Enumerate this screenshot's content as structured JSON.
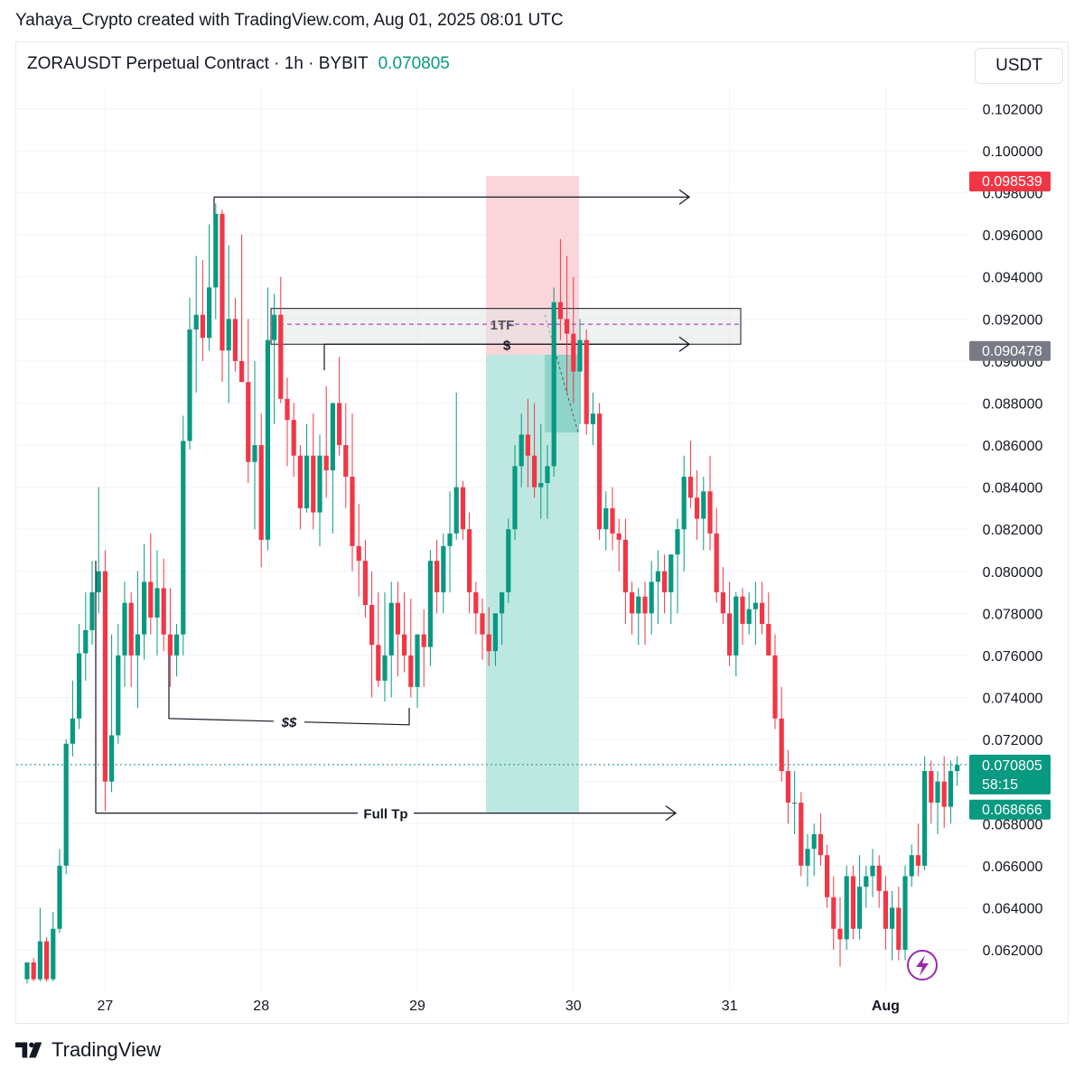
{
  "header": {
    "credit": "Yahaya_Crypto created with TradingView.com, Aug 01, 2025 08:01 UTC",
    "symbol_line": "ZORAUSDT Perpetual Contract · 1h · BYBIT",
    "last_price": "0.070805",
    "unit_button": "USDT"
  },
  "footer": {
    "brand": "TradingView",
    "logo_icon": "tradingview-logo-icon"
  },
  "colors": {
    "up": "#089981",
    "down": "#f23645",
    "grid": "#f0f3fa",
    "text": "#131722",
    "long_zone": "#b2e4dc",
    "stop_zone": "#f9cfd3",
    "box": "#e3e6e6",
    "badge_red": "#f23645",
    "badge_gray": "#787b86",
    "badge_green": "#089981",
    "lightning": "#9c27b0"
  },
  "chart_data": {
    "type": "candlestick",
    "symbol": "ZORAUSDT",
    "timeframe": "1h",
    "y_axis": {
      "ticks": [
        "0.102000",
        "0.100000",
        "0.098000",
        "0.096000",
        "0.094000",
        "0.092000",
        "0.090000",
        "0.088000",
        "0.086000",
        "0.084000",
        "0.082000",
        "0.080000",
        "0.078000",
        "0.076000",
        "0.074000",
        "0.072000",
        "0.070000",
        "0.068000",
        "0.066000",
        "0.064000",
        "0.062000"
      ],
      "range": [
        0.0605,
        0.1035
      ]
    },
    "x_axis": {
      "ticks": [
        {
          "label": "27",
          "index": 12
        },
        {
          "label": "28",
          "index": 36
        },
        {
          "label": "29",
          "index": 60
        },
        {
          "label": "30",
          "index": 84
        },
        {
          "label": "31",
          "index": 108
        },
        {
          "label": "Aug",
          "index": 132
        }
      ]
    },
    "candles": [
      [
        0.0606,
        0.0614,
        0.0604,
        0.0614
      ],
      [
        0.0614,
        0.0616,
        0.0605,
        0.0606
      ],
      [
        0.0606,
        0.064,
        0.0605,
        0.0624
      ],
      [
        0.0624,
        0.0626,
        0.0605,
        0.0606
      ],
      [
        0.0606,
        0.0638,
        0.0605,
        0.063
      ],
      [
        0.063,
        0.0668,
        0.0628,
        0.066
      ],
      [
        0.066,
        0.072,
        0.0656,
        0.0718
      ],
      [
        0.0718,
        0.0748,
        0.0712,
        0.073
      ],
      [
        0.073,
        0.0775,
        0.0725,
        0.0761
      ],
      [
        0.0761,
        0.079,
        0.0748,
        0.0772
      ],
      [
        0.0772,
        0.0805,
        0.0765,
        0.079
      ],
      [
        0.079,
        0.084,
        0.078,
        0.08
      ],
      [
        0.08,
        0.081,
        0.0686,
        0.07
      ],
      [
        0.07,
        0.077,
        0.0695,
        0.0722
      ],
      [
        0.0722,
        0.0775,
        0.0718,
        0.076
      ],
      [
        0.076,
        0.0795,
        0.0745,
        0.0785
      ],
      [
        0.0785,
        0.079,
        0.0745,
        0.076
      ],
      [
        0.076,
        0.08,
        0.0735,
        0.077
      ],
      [
        0.077,
        0.0813,
        0.0758,
        0.0795
      ],
      [
        0.0795,
        0.0818,
        0.077,
        0.0778
      ],
      [
        0.0778,
        0.081,
        0.076,
        0.0792
      ],
      [
        0.0792,
        0.0806,
        0.0762,
        0.077
      ],
      [
        0.077,
        0.0792,
        0.0745,
        0.076
      ],
      [
        0.076,
        0.0775,
        0.075,
        0.077
      ],
      [
        0.077,
        0.0874,
        0.076,
        0.0862
      ],
      [
        0.0862,
        0.093,
        0.0858,
        0.0915
      ],
      [
        0.0915,
        0.095,
        0.0885,
        0.0922
      ],
      [
        0.0922,
        0.0948,
        0.09,
        0.0911
      ],
      [
        0.0911,
        0.0965,
        0.0905,
        0.0935
      ],
      [
        0.0935,
        0.0975,
        0.092,
        0.097
      ],
      [
        0.097,
        0.0972,
        0.089,
        0.0905
      ],
      [
        0.0905,
        0.0955,
        0.088,
        0.092
      ],
      [
        0.092,
        0.093,
        0.0895,
        0.09
      ],
      [
        0.09,
        0.096,
        0.089,
        0.089
      ],
      [
        0.089,
        0.092,
        0.0842,
        0.0852
      ],
      [
        0.0852,
        0.09,
        0.082,
        0.086
      ],
      [
        0.086,
        0.0875,
        0.0802,
        0.0815
      ],
      [
        0.0815,
        0.0935,
        0.081,
        0.091
      ],
      [
        0.091,
        0.0932,
        0.087,
        0.0922
      ],
      [
        0.0922,
        0.094,
        0.088,
        0.0882
      ],
      [
        0.0882,
        0.0892,
        0.085,
        0.0872
      ],
      [
        0.0872,
        0.088,
        0.0845,
        0.0855
      ],
      [
        0.0855,
        0.086,
        0.082,
        0.083
      ],
      [
        0.083,
        0.087,
        0.0828,
        0.0855
      ],
      [
        0.0855,
        0.0875,
        0.082,
        0.0828
      ],
      [
        0.0828,
        0.0865,
        0.0812,
        0.0855
      ],
      [
        0.0855,
        0.0888,
        0.0835,
        0.0848
      ],
      [
        0.0848,
        0.088,
        0.0818,
        0.088
      ],
      [
        0.088,
        0.0902,
        0.0855,
        0.086
      ],
      [
        0.086,
        0.088,
        0.083,
        0.0845
      ],
      [
        0.0845,
        0.0875,
        0.08,
        0.0812
      ],
      [
        0.0812,
        0.0832,
        0.0788,
        0.0805
      ],
      [
        0.0805,
        0.0815,
        0.0778,
        0.0784
      ],
      [
        0.0784,
        0.08,
        0.074,
        0.0765
      ],
      [
        0.0765,
        0.079,
        0.0745,
        0.0748
      ],
      [
        0.0748,
        0.079,
        0.0738,
        0.076
      ],
      [
        0.076,
        0.0795,
        0.074,
        0.0785
      ],
      [
        0.0785,
        0.0795,
        0.075,
        0.077
      ],
      [
        0.077,
        0.079,
        0.0752,
        0.076
      ],
      [
        0.076,
        0.0787,
        0.074,
        0.0745
      ],
      [
        0.0745,
        0.077,
        0.0735,
        0.077
      ],
      [
        0.077,
        0.0782,
        0.0745,
        0.0764
      ],
      [
        0.0764,
        0.081,
        0.0755,
        0.0805
      ],
      [
        0.0805,
        0.0815,
        0.078,
        0.079
      ],
      [
        0.079,
        0.0818,
        0.078,
        0.0812
      ],
      [
        0.0812,
        0.0838,
        0.079,
        0.0818
      ],
      [
        0.0818,
        0.0885,
        0.0815,
        0.084
      ],
      [
        0.084,
        0.0843,
        0.0815,
        0.082
      ],
      [
        0.082,
        0.0828,
        0.078,
        0.079
      ],
      [
        0.079,
        0.0795,
        0.077,
        0.078
      ],
      [
        0.078,
        0.0787,
        0.0758,
        0.077
      ],
      [
        0.077,
        0.0783,
        0.0755,
        0.0762
      ],
      [
        0.0762,
        0.078,
        0.0755,
        0.078
      ],
      [
        0.078,
        0.079,
        0.0765,
        0.079
      ],
      [
        0.079,
        0.0825,
        0.0785,
        0.082
      ],
      [
        0.082,
        0.086,
        0.0815,
        0.085
      ],
      [
        0.085,
        0.0875,
        0.084,
        0.0865
      ],
      [
        0.0865,
        0.0882,
        0.084,
        0.0855
      ],
      [
        0.0855,
        0.088,
        0.0835,
        0.084
      ],
      [
        0.084,
        0.087,
        0.0825,
        0.0842
      ],
      [
        0.0842,
        0.086,
        0.0825,
        0.085
      ],
      [
        0.085,
        0.0935,
        0.0845,
        0.0928
      ],
      [
        0.0928,
        0.0958,
        0.091,
        0.092
      ],
      [
        0.092,
        0.095,
        0.0885,
        0.0913
      ],
      [
        0.0913,
        0.094,
        0.088,
        0.0895
      ],
      [
        0.0895,
        0.092,
        0.087,
        0.091
      ],
      [
        0.091,
        0.0915,
        0.0865,
        0.087
      ],
      [
        0.087,
        0.0885,
        0.086,
        0.0875
      ],
      [
        0.0875,
        0.088,
        0.0815,
        0.082
      ],
      [
        0.082,
        0.0838,
        0.081,
        0.083
      ],
      [
        0.083,
        0.084,
        0.081,
        0.0818
      ],
      [
        0.0818,
        0.0825,
        0.08,
        0.0815
      ],
      [
        0.0815,
        0.0825,
        0.0775,
        0.079
      ],
      [
        0.079,
        0.0795,
        0.077,
        0.078
      ],
      [
        0.078,
        0.0792,
        0.0765,
        0.0788
      ],
      [
        0.0788,
        0.0795,
        0.0765,
        0.078
      ],
      [
        0.078,
        0.0805,
        0.077,
        0.0795
      ],
      [
        0.0795,
        0.081,
        0.0775,
        0.08
      ],
      [
        0.08,
        0.0808,
        0.078,
        0.079
      ],
      [
        0.079,
        0.0805,
        0.0775,
        0.0808
      ],
      [
        0.0808,
        0.0825,
        0.078,
        0.082
      ],
      [
        0.082,
        0.0855,
        0.08,
        0.0845
      ],
      [
        0.0845,
        0.0862,
        0.083,
        0.0835
      ],
      [
        0.0835,
        0.0848,
        0.0815,
        0.0825
      ],
      [
        0.0825,
        0.0845,
        0.081,
        0.0838
      ],
      [
        0.0838,
        0.0855,
        0.081,
        0.0818
      ],
      [
        0.0818,
        0.083,
        0.0785,
        0.079
      ],
      [
        0.079,
        0.0802,
        0.0775,
        0.078
      ],
      [
        0.078,
        0.0795,
        0.0755,
        0.076
      ],
      [
        0.076,
        0.079,
        0.075,
        0.0788
      ],
      [
        0.0788,
        0.0792,
        0.0765,
        0.0775
      ],
      [
        0.0775,
        0.079,
        0.077,
        0.0782
      ],
      [
        0.0782,
        0.0795,
        0.0765,
        0.0785
      ],
      [
        0.0785,
        0.0795,
        0.077,
        0.0775
      ],
      [
        0.0775,
        0.079,
        0.076,
        0.076
      ],
      [
        0.076,
        0.077,
        0.0725,
        0.073
      ],
      [
        0.073,
        0.0745,
        0.07,
        0.0705
      ],
      [
        0.0705,
        0.0715,
        0.068,
        0.069
      ],
      [
        0.069,
        0.0705,
        0.0675,
        0.069
      ],
      [
        0.069,
        0.0695,
        0.0655,
        0.066
      ],
      [
        0.066,
        0.0675,
        0.065,
        0.0668
      ],
      [
        0.0668,
        0.068,
        0.0655,
        0.0675
      ],
      [
        0.0675,
        0.0685,
        0.066,
        0.0665
      ],
      [
        0.0665,
        0.067,
        0.064,
        0.0645
      ],
      [
        0.0645,
        0.0655,
        0.062,
        0.063
      ],
      [
        0.063,
        0.0645,
        0.0612,
        0.0625
      ],
      [
        0.0625,
        0.066,
        0.062,
        0.0655
      ],
      [
        0.0655,
        0.066,
        0.0625,
        0.063
      ],
      [
        0.063,
        0.0665,
        0.0625,
        0.065
      ],
      [
        0.065,
        0.066,
        0.064,
        0.0655
      ],
      [
        0.0655,
        0.0668,
        0.0645,
        0.066
      ],
      [
        0.066,
        0.0665,
        0.064,
        0.0648
      ],
      [
        0.0648,
        0.0655,
        0.062,
        0.063
      ],
      [
        0.063,
        0.0648,
        0.0615,
        0.064
      ],
      [
        0.064,
        0.065,
        0.0615,
        0.062
      ],
      [
        0.062,
        0.066,
        0.0615,
        0.0655
      ],
      [
        0.0655,
        0.067,
        0.065,
        0.0665
      ],
      [
        0.0665,
        0.068,
        0.0655,
        0.066
      ],
      [
        0.066,
        0.0712,
        0.0658,
        0.0705
      ],
      [
        0.0705,
        0.071,
        0.068,
        0.069
      ],
      [
        0.069,
        0.0705,
        0.0675,
        0.07
      ],
      [
        0.07,
        0.0712,
        0.0678,
        0.0688
      ],
      [
        0.0688,
        0.071,
        0.068,
        0.0705
      ],
      [
        0.0705,
        0.0712,
        0.0698,
        0.0708
      ]
    ],
    "drawings": {
      "box_label": "1TF",
      "level_label": "$",
      "liquidity_label": "$$",
      "target_label": "Full Tp",
      "box_top": 0.0925,
      "box_bottom": 0.0908,
      "box_mid": 0.09175,
      "top_line": 0.0978,
      "dollar_line": 0.0908,
      "liquidity_line": 0.073,
      "full_tp_line": 0.0685,
      "position_entry": 0.0903,
      "position_stop": 0.0988,
      "position_target": 0.0685,
      "position_fill_price": 0.0866
    },
    "price_badges": {
      "upper_red": "0.098539",
      "upper_red_value": 0.098539,
      "mid_gray": "0.090478",
      "mid_gray_value": 0.090478,
      "current": "0.070805",
      "current_value": 0.070805,
      "countdown": "58:15",
      "lower_green": "0.068666",
      "lower_green_value": 0.068666
    },
    "grid": true
  }
}
